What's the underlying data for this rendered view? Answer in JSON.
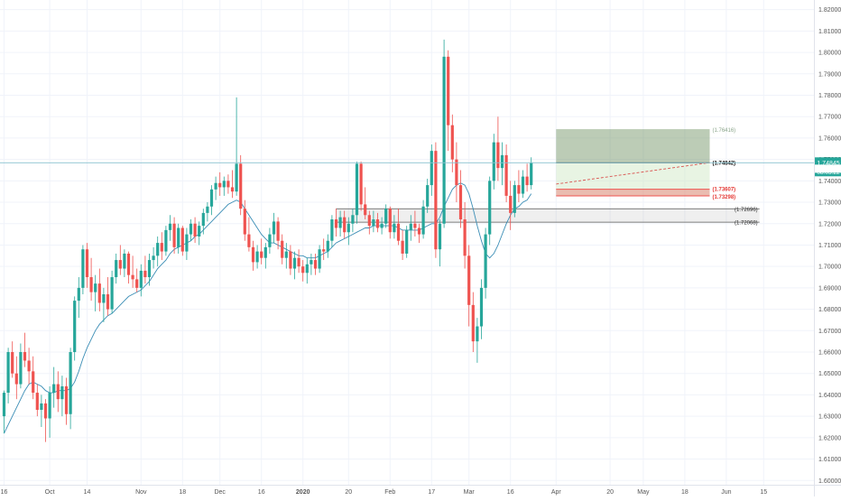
{
  "chart_data": {
    "type": "candlestick",
    "grid": true,
    "y_ticks": [
      "1.82000",
      "1.81000",
      "1.80000",
      "1.79000",
      "1.78000",
      "1.77000",
      "1.76000",
      "1.75000",
      "1.74000",
      "1.73000",
      "1.72000",
      "1.71000",
      "1.70000",
      "1.69000",
      "1.68000",
      "1.67000",
      "1.66000",
      "1.65000",
      "1.64000",
      "1.63000",
      "1.62000",
      "1.61000",
      "1.60000"
    ],
    "y_tick_values": [
      1.82,
      1.81,
      1.8,
      1.79,
      1.78,
      1.77,
      1.76,
      1.75,
      1.74,
      1.73,
      1.72,
      1.71,
      1.7,
      1.69,
      1.68,
      1.67,
      1.66,
      1.65,
      1.64,
      1.63,
      1.62,
      1.61,
      1.6
    ],
    "ylim": [
      1.598,
      1.8245
    ],
    "x_ticks": [
      {
        "label": "16",
        "i": 0
      },
      {
        "label": "Oct",
        "i": 11
      },
      {
        "label": "14",
        "i": 20
      },
      {
        "label": "Nov",
        "i": 33
      },
      {
        "label": "18",
        "i": 43
      },
      {
        "label": "Dec",
        "i": 52
      },
      {
        "label": "16",
        "i": 62
      },
      {
        "label": "2020",
        "i": 72
      },
      {
        "label": "20",
        "i": 83
      },
      {
        "label": "Feb",
        "i": 93
      },
      {
        "label": "17",
        "i": 103
      },
      {
        "label": "Mar",
        "i": 112
      },
      {
        "label": "16",
        "i": 122
      },
      {
        "label": "Apr",
        "i": 133
      },
      {
        "label": "20",
        "i": 146
      },
      {
        "label": "May",
        "i": 154
      },
      {
        "label": "18",
        "i": 164
      },
      {
        "label": "Jun",
        "i": 174
      },
      {
        "label": "15",
        "i": 183
      }
    ],
    "colors": {
      "up": "#26a69a",
      "down": "#ef5350",
      "ma": "#3a8db5",
      "price_line": "#88c2cf"
    },
    "candles": [
      {
        "o": 1.63,
        "h": 1.642,
        "l": 1.622,
        "c": 1.641
      },
      {
        "o": 1.641,
        "h": 1.662,
        "l": 1.636,
        "c": 1.66
      },
      {
        "o": 1.66,
        "h": 1.665,
        "l": 1.648,
        "c": 1.65
      },
      {
        "o": 1.65,
        "h": 1.658,
        "l": 1.638,
        "c": 1.645
      },
      {
        "o": 1.645,
        "h": 1.664,
        "l": 1.643,
        "c": 1.66
      },
      {
        "o": 1.66,
        "h": 1.669,
        "l": 1.653,
        "c": 1.656
      },
      {
        "o": 1.656,
        "h": 1.662,
        "l": 1.645,
        "c": 1.651
      },
      {
        "o": 1.651,
        "h": 1.658,
        "l": 1.638,
        "c": 1.641
      },
      {
        "o": 1.641,
        "h": 1.645,
        "l": 1.63,
        "c": 1.633
      },
      {
        "o": 1.633,
        "h": 1.64,
        "l": 1.625,
        "c": 1.636
      },
      {
        "o": 1.636,
        "h": 1.638,
        "l": 1.618,
        "c": 1.629
      },
      {
        "o": 1.629,
        "h": 1.644,
        "l": 1.62,
        "c": 1.641
      },
      {
        "o": 1.641,
        "h": 1.653,
        "l": 1.634,
        "c": 1.645
      },
      {
        "o": 1.645,
        "h": 1.651,
        "l": 1.632,
        "c": 1.638
      },
      {
        "o": 1.638,
        "h": 1.649,
        "l": 1.63,
        "c": 1.644
      },
      {
        "o": 1.644,
        "h": 1.648,
        "l": 1.626,
        "c": 1.631
      },
      {
        "o": 1.631,
        "h": 1.662,
        "l": 1.624,
        "c": 1.66
      },
      {
        "o": 1.66,
        "h": 1.686,
        "l": 1.656,
        "c": 1.684
      },
      {
        "o": 1.684,
        "h": 1.695,
        "l": 1.676,
        "c": 1.69
      },
      {
        "o": 1.69,
        "h": 1.71,
        "l": 1.687,
        "c": 1.708
      },
      {
        "o": 1.708,
        "h": 1.711,
        "l": 1.69,
        "c": 1.695
      },
      {
        "o": 1.695,
        "h": 1.704,
        "l": 1.684,
        "c": 1.688
      },
      {
        "o": 1.688,
        "h": 1.696,
        "l": 1.679,
        "c": 1.692
      },
      {
        "o": 1.692,
        "h": 1.699,
        "l": 1.679,
        "c": 1.683
      },
      {
        "o": 1.683,
        "h": 1.69,
        "l": 1.674,
        "c": 1.687
      },
      {
        "o": 1.687,
        "h": 1.695,
        "l": 1.677,
        "c": 1.68
      },
      {
        "o": 1.68,
        "h": 1.698,
        "l": 1.678,
        "c": 1.695
      },
      {
        "o": 1.695,
        "h": 1.706,
        "l": 1.692,
        "c": 1.703
      },
      {
        "o": 1.703,
        "h": 1.71,
        "l": 1.696,
        "c": 1.699
      },
      {
        "o": 1.699,
        "h": 1.708,
        "l": 1.695,
        "c": 1.706
      },
      {
        "o": 1.706,
        "h": 1.707,
        "l": 1.692,
        "c": 1.696
      },
      {
        "o": 1.696,
        "h": 1.705,
        "l": 1.69,
        "c": 1.694
      },
      {
        "o": 1.694,
        "h": 1.699,
        "l": 1.688,
        "c": 1.69
      },
      {
        "o": 1.69,
        "h": 1.701,
        "l": 1.686,
        "c": 1.698
      },
      {
        "o": 1.698,
        "h": 1.705,
        "l": 1.692,
        "c": 1.695
      },
      {
        "o": 1.695,
        "h": 1.706,
        "l": 1.691,
        "c": 1.703
      },
      {
        "o": 1.703,
        "h": 1.709,
        "l": 1.699,
        "c": 1.705
      },
      {
        "o": 1.705,
        "h": 1.714,
        "l": 1.7,
        "c": 1.711
      },
      {
        "o": 1.711,
        "h": 1.716,
        "l": 1.703,
        "c": 1.707
      },
      {
        "o": 1.707,
        "h": 1.719,
        "l": 1.705,
        "c": 1.717
      },
      {
        "o": 1.717,
        "h": 1.724,
        "l": 1.712,
        "c": 1.72
      },
      {
        "o": 1.72,
        "h": 1.723,
        "l": 1.706,
        "c": 1.709
      },
      {
        "o": 1.709,
        "h": 1.72,
        "l": 1.706,
        "c": 1.718
      },
      {
        "o": 1.718,
        "h": 1.719,
        "l": 1.705,
        "c": 1.707
      },
      {
        "o": 1.707,
        "h": 1.718,
        "l": 1.703,
        "c": 1.715
      },
      {
        "o": 1.715,
        "h": 1.722,
        "l": 1.712,
        "c": 1.72
      },
      {
        "o": 1.72,
        "h": 1.723,
        "l": 1.711,
        "c": 1.714
      },
      {
        "o": 1.714,
        "h": 1.721,
        "l": 1.71,
        "c": 1.719
      },
      {
        "o": 1.719,
        "h": 1.727,
        "l": 1.715,
        "c": 1.725
      },
      {
        "o": 1.725,
        "h": 1.73,
        "l": 1.721,
        "c": 1.728
      },
      {
        "o": 1.728,
        "h": 1.738,
        "l": 1.724,
        "c": 1.736
      },
      {
        "o": 1.736,
        "h": 1.742,
        "l": 1.731,
        "c": 1.739
      },
      {
        "o": 1.739,
        "h": 1.744,
        "l": 1.733,
        "c": 1.737
      },
      {
        "o": 1.737,
        "h": 1.742,
        "l": 1.733,
        "c": 1.74
      },
      {
        "o": 1.74,
        "h": 1.743,
        "l": 1.734,
        "c": 1.737
      },
      {
        "o": 1.737,
        "h": 1.745,
        "l": 1.732,
        "c": 1.735
      },
      {
        "o": 1.735,
        "h": 1.779,
        "l": 1.733,
        "c": 1.748
      },
      {
        "o": 1.748,
        "h": 1.752,
        "l": 1.724,
        "c": 1.727
      },
      {
        "o": 1.727,
        "h": 1.731,
        "l": 1.712,
        "c": 1.715
      },
      {
        "o": 1.715,
        "h": 1.723,
        "l": 1.707,
        "c": 1.709
      },
      {
        "o": 1.709,
        "h": 1.712,
        "l": 1.698,
        "c": 1.702
      },
      {
        "o": 1.702,
        "h": 1.71,
        "l": 1.699,
        "c": 1.707
      },
      {
        "o": 1.707,
        "h": 1.713,
        "l": 1.701,
        "c": 1.704
      },
      {
        "o": 1.704,
        "h": 1.711,
        "l": 1.699,
        "c": 1.709
      },
      {
        "o": 1.709,
        "h": 1.718,
        "l": 1.706,
        "c": 1.715
      },
      {
        "o": 1.715,
        "h": 1.725,
        "l": 1.711,
        "c": 1.721
      },
      {
        "o": 1.721,
        "h": 1.723,
        "l": 1.708,
        "c": 1.712
      },
      {
        "o": 1.712,
        "h": 1.715,
        "l": 1.701,
        "c": 1.704
      },
      {
        "o": 1.704,
        "h": 1.711,
        "l": 1.699,
        "c": 1.707
      },
      {
        "o": 1.707,
        "h": 1.71,
        "l": 1.696,
        "c": 1.699
      },
      {
        "o": 1.699,
        "h": 1.707,
        "l": 1.694,
        "c": 1.704
      },
      {
        "o": 1.704,
        "h": 1.708,
        "l": 1.697,
        "c": 1.7
      },
      {
        "o": 1.7,
        "h": 1.703,
        "l": 1.693,
        "c": 1.697
      },
      {
        "o": 1.697,
        "h": 1.704,
        "l": 1.692,
        "c": 1.701
      },
      {
        "o": 1.701,
        "h": 1.706,
        "l": 1.696,
        "c": 1.703
      },
      {
        "o": 1.703,
        "h": 1.706,
        "l": 1.696,
        "c": 1.699
      },
      {
        "o": 1.699,
        "h": 1.71,
        "l": 1.697,
        "c": 1.708
      },
      {
        "o": 1.708,
        "h": 1.713,
        "l": 1.703,
        "c": 1.707
      },
      {
        "o": 1.707,
        "h": 1.715,
        "l": 1.704,
        "c": 1.712
      },
      {
        "o": 1.712,
        "h": 1.724,
        "l": 1.709,
        "c": 1.722
      },
      {
        "o": 1.722,
        "h": 1.727,
        "l": 1.714,
        "c": 1.718
      },
      {
        "o": 1.718,
        "h": 1.726,
        "l": 1.714,
        "c": 1.723
      },
      {
        "o": 1.723,
        "h": 1.726,
        "l": 1.713,
        "c": 1.716
      },
      {
        "o": 1.716,
        "h": 1.723,
        "l": 1.71,
        "c": 1.72
      },
      {
        "o": 1.72,
        "h": 1.727,
        "l": 1.716,
        "c": 1.724
      },
      {
        "o": 1.724,
        "h": 1.749,
        "l": 1.72,
        "c": 1.748
      },
      {
        "o": 1.748,
        "h": 1.749,
        "l": 1.726,
        "c": 1.729
      },
      {
        "o": 1.729,
        "h": 1.737,
        "l": 1.722,
        "c": 1.724
      },
      {
        "o": 1.724,
        "h": 1.726,
        "l": 1.715,
        "c": 1.719
      },
      {
        "o": 1.719,
        "h": 1.726,
        "l": 1.716,
        "c": 1.722
      },
      {
        "o": 1.722,
        "h": 1.725,
        "l": 1.716,
        "c": 1.718
      },
      {
        "o": 1.718,
        "h": 1.723,
        "l": 1.715,
        "c": 1.72
      },
      {
        "o": 1.72,
        "h": 1.729,
        "l": 1.718,
        "c": 1.727
      },
      {
        "o": 1.727,
        "h": 1.728,
        "l": 1.713,
        "c": 1.716
      },
      {
        "o": 1.716,
        "h": 1.724,
        "l": 1.713,
        "c": 1.72
      },
      {
        "o": 1.72,
        "h": 1.727,
        "l": 1.71,
        "c": 1.712
      },
      {
        "o": 1.712,
        "h": 1.717,
        "l": 1.703,
        "c": 1.706
      },
      {
        "o": 1.706,
        "h": 1.719,
        "l": 1.704,
        "c": 1.717
      },
      {
        "o": 1.717,
        "h": 1.724,
        "l": 1.712,
        "c": 1.72
      },
      {
        "o": 1.72,
        "h": 1.726,
        "l": 1.714,
        "c": 1.718
      },
      {
        "o": 1.718,
        "h": 1.72,
        "l": 1.711,
        "c": 1.715
      },
      {
        "o": 1.715,
        "h": 1.731,
        "l": 1.713,
        "c": 1.728
      },
      {
        "o": 1.728,
        "h": 1.741,
        "l": 1.725,
        "c": 1.738
      },
      {
        "o": 1.738,
        "h": 1.757,
        "l": 1.733,
        "c": 1.754
      },
      {
        "o": 1.754,
        "h": 1.758,
        "l": 1.704,
        "c": 1.708
      },
      {
        "o": 1.708,
        "h": 1.722,
        "l": 1.7,
        "c": 1.72
      },
      {
        "o": 1.72,
        "h": 1.806,
        "l": 1.718,
        "c": 1.798
      },
      {
        "o": 1.798,
        "h": 1.801,
        "l": 1.754,
        "c": 1.766
      },
      {
        "o": 1.766,
        "h": 1.771,
        "l": 1.744,
        "c": 1.75
      },
      {
        "o": 1.75,
        "h": 1.758,
        "l": 1.73,
        "c": 1.738
      },
      {
        "o": 1.738,
        "h": 1.745,
        "l": 1.718,
        "c": 1.722
      },
      {
        "o": 1.722,
        "h": 1.73,
        "l": 1.699,
        "c": 1.705
      },
      {
        "o": 1.705,
        "h": 1.71,
        "l": 1.672,
        "c": 1.682
      },
      {
        "o": 1.682,
        "h": 1.688,
        "l": 1.66,
        "c": 1.665
      },
      {
        "o": 1.665,
        "h": 1.676,
        "l": 1.655,
        "c": 1.672
      },
      {
        "o": 1.672,
        "h": 1.694,
        "l": 1.666,
        "c": 1.69
      },
      {
        "o": 1.69,
        "h": 1.718,
        "l": 1.685,
        "c": 1.715
      },
      {
        "o": 1.715,
        "h": 1.742,
        "l": 1.71,
        "c": 1.74
      },
      {
        "o": 1.74,
        "h": 1.762,
        "l": 1.736,
        "c": 1.758
      },
      {
        "o": 1.758,
        "h": 1.77,
        "l": 1.74,
        "c": 1.746
      },
      {
        "o": 1.746,
        "h": 1.758,
        "l": 1.738,
        "c": 1.752
      },
      {
        "o": 1.752,
        "h": 1.757,
        "l": 1.73,
        "c": 1.733
      },
      {
        "o": 1.733,
        "h": 1.74,
        "l": 1.717,
        "c": 1.725
      },
      {
        "o": 1.725,
        "h": 1.74,
        "l": 1.723,
        "c": 1.738
      },
      {
        "o": 1.738,
        "h": 1.745,
        "l": 1.73,
        "c": 1.734
      },
      {
        "o": 1.734,
        "h": 1.745,
        "l": 1.732,
        "c": 1.742
      },
      {
        "o": 1.742,
        "h": 1.748,
        "l": 1.735,
        "c": 1.738
      },
      {
        "o": 1.738,
        "h": 1.751,
        "l": 1.736,
        "c": 1.7485
      }
    ],
    "ma_values": [
      1.622,
      1.626,
      1.63,
      1.634,
      1.638,
      1.642,
      1.645,
      1.646,
      1.645,
      1.644,
      1.642,
      1.641,
      1.641,
      1.642,
      1.642,
      1.642,
      1.643,
      1.646,
      1.651,
      1.657,
      1.662,
      1.666,
      1.67,
      1.673,
      1.675,
      1.677,
      1.678,
      1.68,
      1.682,
      1.684,
      1.686,
      1.687,
      1.688,
      1.689,
      1.691,
      1.693,
      1.696,
      1.699,
      1.701,
      1.703,
      1.706,
      1.708,
      1.709,
      1.71,
      1.711,
      1.712,
      1.714,
      1.715,
      1.717,
      1.719,
      1.721,
      1.723,
      1.725,
      1.727,
      1.729,
      1.73,
      1.731,
      1.73,
      1.727,
      1.724,
      1.721,
      1.718,
      1.715,
      1.713,
      1.711,
      1.711,
      1.71,
      1.709,
      1.708,
      1.707,
      1.706,
      1.705,
      1.705,
      1.704,
      1.704,
      1.704,
      1.705,
      1.706,
      1.707,
      1.709,
      1.711,
      1.712,
      1.713,
      1.714,
      1.715,
      1.716,
      1.717,
      1.718,
      1.718,
      1.719,
      1.719,
      1.719,
      1.719,
      1.719,
      1.719,
      1.718,
      1.717,
      1.717,
      1.717,
      1.717,
      1.717,
      1.718,
      1.719,
      1.72,
      1.72,
      1.723,
      1.728,
      1.732,
      1.736,
      1.738,
      1.739,
      1.738,
      1.734,
      1.727,
      1.719,
      1.712,
      1.706,
      1.704,
      1.706,
      1.71,
      1.715,
      1.72,
      1.724,
      1.727,
      1.728,
      1.73,
      1.731,
      1.734
    ],
    "price_line": {
      "value": 1.74845,
      "label": "1.74845",
      "time_label": "08:05:22"
    },
    "position": {
      "entry": 1.74842,
      "entry_label": "1.74842",
      "target": 1.76416,
      "target_label": "1.76416",
      "stop_a": 1.73607,
      "stop_a_label": "1.73607",
      "stop_b": 1.73298,
      "stop_b_label": "1.73298",
      "start_i": 133,
      "end_i": 170
    },
    "zone": {
      "top": 1.72696,
      "top_label": "1.72696",
      "bottom": 1.72068,
      "bottom_label": "1.72068",
      "start_i": 80,
      "end_i": 182
    },
    "projection": {
      "from": 1.7385,
      "to": 1.7485,
      "start_i": 133,
      "end_i": 170
    }
  }
}
